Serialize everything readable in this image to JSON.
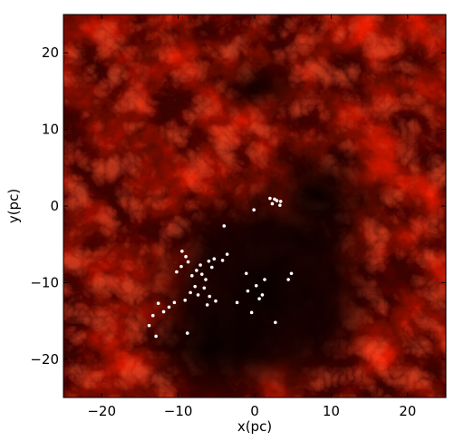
{
  "chart_data": {
    "type": "scatter",
    "title": "",
    "xlabel": "x(pc)",
    "ylabel": "y(pc)",
    "xlim": [
      -25,
      25
    ],
    "ylim": [
      -25,
      25
    ],
    "xticks": [
      -20,
      -10,
      0,
      10,
      20
    ],
    "yticks": [
      -20,
      -10,
      0,
      10,
      20
    ],
    "x_tick_labels": [
      "−20",
      "−10",
      "0",
      "10",
      "20"
    ],
    "y_tick_labels": [
      "−20",
      "−10",
      "0",
      "10",
      "20"
    ],
    "grid": false,
    "background_image": "column-density-map-red-hot-colormap",
    "colors": {
      "gas_bright": "#ff3a1a",
      "gas_mid": "#c80a00",
      "gas_dark": "#2a0000",
      "void": "#0a0000",
      "stars": "#ffffff"
    },
    "series": [
      {
        "marker": "white-dot",
        "x": [
          -9.5,
          -9.0,
          -8.7,
          -9.6,
          -10.2,
          -8.2,
          -7.6,
          -7.1,
          -6.9,
          -6.4,
          -6.0,
          -5.6,
          -5.3,
          -7.8,
          -8.4,
          -6.6,
          -5.9,
          -4.2,
          -3.6,
          -5.1,
          -6.2,
          -7.4,
          -9.1,
          -10.5,
          -11.2,
          -11.9,
          -12.6,
          -13.3,
          -13.8,
          -12.9,
          -8.8,
          -2.3,
          -0.9,
          0.2,
          1.0,
          1.3,
          -0.4,
          0.6,
          -1.1,
          2.6,
          3.4,
          2.0,
          2.3,
          2.9,
          3.3,
          -0.1,
          4.4,
          4.8,
          2.7,
          -4.0
        ],
        "y": [
          -5.9,
          -6.6,
          -7.3,
          -7.9,
          -8.6,
          -9.1,
          -8.4,
          -7.7,
          -8.9,
          -9.6,
          -7.2,
          -8.0,
          -6.9,
          -10.5,
          -11.3,
          -10.7,
          -11.8,
          -7.1,
          -6.3,
          -12.4,
          -12.9,
          -11.6,
          -12.3,
          -12.6,
          -13.2,
          -13.8,
          -12.7,
          -14.3,
          -15.6,
          -17.0,
          -16.6,
          -12.6,
          -11.1,
          -10.4,
          -11.6,
          -9.6,
          -13.9,
          -12.1,
          -8.8,
          0.9,
          0.6,
          1.0,
          0.3,
          0.7,
          0.1,
          -0.5,
          -9.6,
          -8.8,
          -15.2,
          -2.6
        ]
      }
    ]
  }
}
